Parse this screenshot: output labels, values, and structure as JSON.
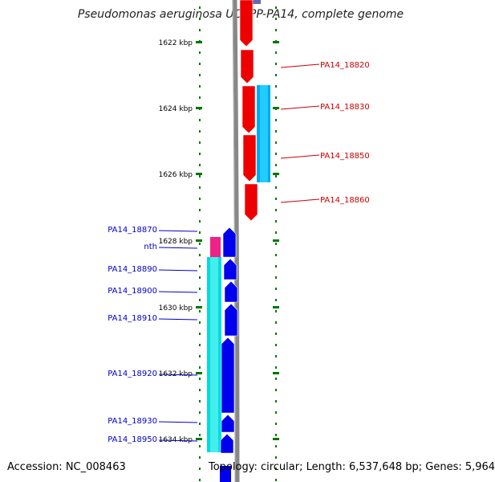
{
  "title": "Pseudomonas aeruginosa UCBPP-PA14, complete genome",
  "footer": {
    "accession": "Accession: NC_008463",
    "topology": "Topology: circular; Length: 6,537,648 bp; Genes: 5,964"
  },
  "scale_ticks": [
    {
      "label": "1622 kbp",
      "kbp": 1622
    },
    {
      "label": "1624 kbp",
      "kbp": 1624
    },
    {
      "label": "1626 kbp",
      "kbp": 1626
    },
    {
      "label": "1628 kbp",
      "kbp": 1628
    },
    {
      "label": "1630 kbp",
      "kbp": 1630
    },
    {
      "label": "1632 kbp",
      "kbp": 1632
    },
    {
      "label": "1634 kbp",
      "kbp": 1634
    }
  ],
  "genes_right": [
    {
      "label": "PA14_18820",
      "color": "#cc0000"
    },
    {
      "label": "PA14_18830",
      "color": "#cc0000"
    },
    {
      "label": "PA14_18850",
      "color": "#cc0000"
    },
    {
      "label": "PA14_18860",
      "color": "#cc0000"
    }
  ],
  "genes_left": [
    {
      "label": "PA14_18870",
      "color": "#0000cc"
    },
    {
      "label": "nth",
      "color": "#0000cc"
    },
    {
      "label": "PA14_18890",
      "color": "#0000cc"
    },
    {
      "label": "PA14_18900",
      "color": "#0000cc"
    },
    {
      "label": "PA14_18910",
      "color": "#0000cc"
    },
    {
      "label": "PA14_18920",
      "color": "#0000cc"
    },
    {
      "label": "PA14_18930",
      "color": "#0000cc"
    },
    {
      "label": "PA14_18950",
      "color": "#0000cc"
    }
  ],
  "colors": {
    "forward_gene": "#ee0000",
    "reverse_gene": "#0000ee",
    "forward_rna": "#00aaee",
    "reverse_rna": "#00dddd",
    "misc_feature": "#ee2288",
    "backbone": "#888888",
    "scale_dots": "#007700"
  }
}
